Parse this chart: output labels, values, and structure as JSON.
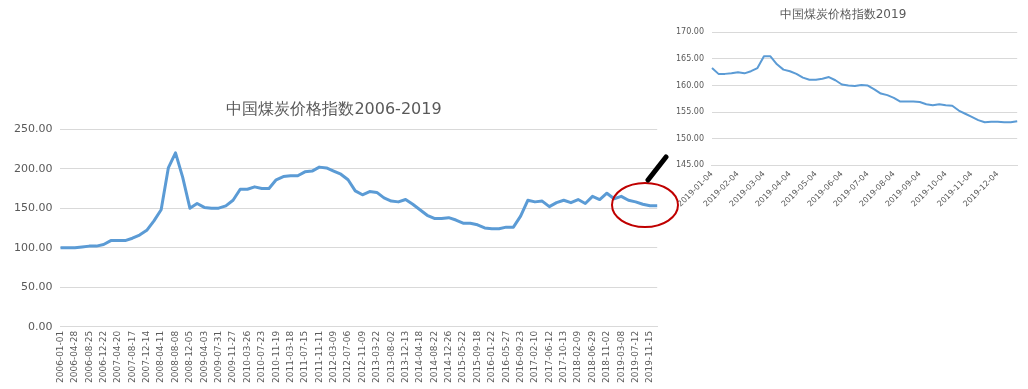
{
  "chart_data": [
    {
      "type": "line",
      "title": "中国煤炭价格指数2006-2019",
      "color": "#5b9bd5",
      "marker": "none",
      "legend": false,
      "grid": "y",
      "categories": [
        "2006-01-01",
        null,
        "2006-04-28",
        null,
        "2006-08-25",
        null,
        "2006-12-22",
        null,
        "2007-04-20",
        null,
        "2007-08-17",
        null,
        "2007-12-14",
        null,
        "2008-04-11",
        null,
        "2008-08-08",
        null,
        "2008-12-05",
        null,
        "2009-04-03",
        null,
        "2009-07-31",
        null,
        "2009-11-27",
        null,
        "2010-03-26",
        null,
        "2010-07-23",
        null,
        "2010-11-19",
        null,
        "2011-03-18",
        null,
        "2011-07-15",
        null,
        "2011-11-11",
        null,
        "2012-03-09",
        null,
        "2012-07-06",
        null,
        "2012-11-09",
        null,
        "2013-03-22",
        null,
        "2013-08-02",
        null,
        "2013-12-13",
        null,
        "2014-04-18",
        null,
        "2014-08-22",
        null,
        "2014-12-26",
        null,
        "2015-05-22",
        null,
        "2015-09-18",
        null,
        "2016-01-22",
        null,
        "2016-05-27",
        null,
        "2016-09-23",
        null,
        "2017-02-10",
        null,
        "2017-06-12",
        null,
        "2017-10-13",
        null,
        "2018-02-09",
        null,
        "2018-06-29",
        null,
        "2018-11-02",
        null,
        "2019-03-08",
        null,
        "2019-07-12",
        null,
        "2019-11-15",
        null
      ],
      "values": [
        100,
        100,
        100,
        101,
        102,
        102,
        104,
        109,
        109,
        109,
        112,
        116,
        122,
        134,
        148,
        201,
        220,
        189,
        150,
        156,
        151,
        150,
        150,
        153,
        160,
        174,
        174,
        177,
        175,
        175,
        186,
        190,
        191,
        191,
        196,
        197,
        202,
        201,
        197,
        193,
        186,
        172,
        167,
        171,
        170,
        163,
        159,
        158,
        161,
        155,
        148,
        141,
        137,
        137,
        138,
        135,
        131,
        131,
        129,
        125,
        124,
        124,
        126,
        126,
        140,
        160,
        158,
        159,
        152,
        157,
        160,
        157,
        161,
        156,
        165,
        161,
        169,
        162,
        165,
        160,
        158,
        155,
        153,
        153
      ],
      "ylim": [
        0,
        250
      ],
      "yticks": [
        {
          "value": 0,
          "label": "0.00"
        },
        {
          "value": 50,
          "label": "50.00"
        },
        {
          "value": 100,
          "label": "100.00"
        },
        {
          "value": 150,
          "label": "150.00"
        },
        {
          "value": 200,
          "label": "200.00"
        },
        {
          "value": 250,
          "label": "250.00"
        }
      ]
    },
    {
      "type": "line",
      "title": "中国煤炭价格指数2019",
      "color": "#5b9bd5",
      "marker": "none",
      "legend": false,
      "grid": "y",
      "categories": [
        "2019-01-04",
        null,
        null,
        null,
        "2019-02-04",
        null,
        null,
        null,
        "2019-03-04",
        null,
        null,
        null,
        "2019-04-04",
        null,
        null,
        null,
        "2019-05-04",
        null,
        null,
        null,
        "2019-06-04",
        null,
        null,
        null,
        "2019-07-04",
        null,
        null,
        null,
        "2019-08-04",
        null,
        null,
        null,
        "2019-09-04",
        null,
        null,
        null,
        "2019-10-04",
        null,
        null,
        null,
        "2019-11-04",
        null,
        null,
        null,
        "2019-12-04",
        null,
        null,
        null
      ],
      "values": [
        163.3,
        162.2,
        162.2,
        162.3,
        162.5,
        162.3,
        162.7,
        163.3,
        165.5,
        165.5,
        164,
        163,
        162.7,
        162.2,
        161.5,
        161.1,
        161.1,
        161.3,
        161.6,
        161,
        160.2,
        160,
        159.9,
        160.1,
        160,
        159.3,
        158.5,
        158.2,
        157.7,
        157,
        157,
        157,
        156.9,
        156.5,
        156.3,
        156.5,
        156.3,
        156.2,
        155.3,
        154.7,
        154.1,
        153.5,
        153.1,
        153.2,
        153.2,
        153.1,
        153.1,
        153.3
      ],
      "ylim": [
        145,
        170
      ],
      "yticks": [
        {
          "value": 145,
          "label": "145.00"
        },
        {
          "value": 150,
          "label": "150.00"
        },
        {
          "value": 155,
          "label": "155.00"
        },
        {
          "value": 160,
          "label": "160.00"
        },
        {
          "value": 165,
          "label": "165.00"
        },
        {
          "value": 170,
          "label": "170.00"
        }
      ]
    }
  ]
}
